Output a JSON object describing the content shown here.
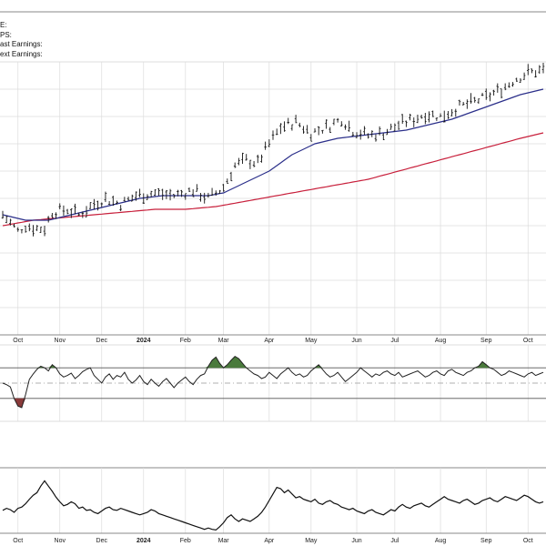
{
  "info_lines": [
    "E:",
    "PS:",
    "ast Earnings:",
    "ext Earnings:"
  ],
  "chart_data": [
    {
      "type": "ohlc",
      "title": "",
      "x_ticks": [
        "Oct",
        "Nov",
        "Dec",
        "2024",
        "Feb",
        "Mar",
        "Apr",
        "May",
        "Jun",
        "Jul",
        "Aug",
        "Sep",
        "Oct"
      ],
      "x_tick_index": [
        4,
        15,
        26,
        37,
        48,
        58,
        70,
        81,
        93,
        103,
        115,
        127,
        138
      ],
      "n_bars": 143,
      "price_anchors": [
        [
          0,
          0.44
        ],
        [
          4,
          0.38
        ],
        [
          6,
          0.4
        ],
        [
          9,
          0.39
        ],
        [
          11,
          0.39
        ],
        [
          13,
          0.45
        ],
        [
          17,
          0.46
        ],
        [
          20,
          0.44
        ],
        [
          24,
          0.48
        ],
        [
          27,
          0.5
        ],
        [
          31,
          0.48
        ],
        [
          35,
          0.51
        ],
        [
          40,
          0.52
        ],
        [
          45,
          0.51
        ],
        [
          50,
          0.53
        ],
        [
          54,
          0.5
        ],
        [
          58,
          0.54
        ],
        [
          61,
          0.62
        ],
        [
          64,
          0.64
        ],
        [
          67,
          0.63
        ],
        [
          70,
          0.7
        ],
        [
          73,
          0.76
        ],
        [
          77,
          0.78
        ],
        [
          81,
          0.74
        ],
        [
          85,
          0.76
        ],
        [
          89,
          0.79
        ],
        [
          92,
          0.75
        ],
        [
          96,
          0.73
        ],
        [
          100,
          0.74
        ],
        [
          104,
          0.77
        ],
        [
          108,
          0.79
        ],
        [
          111,
          0.81
        ],
        [
          115,
          0.8
        ],
        [
          119,
          0.83
        ],
        [
          123,
          0.85
        ],
        [
          127,
          0.87
        ],
        [
          131,
          0.9
        ],
        [
          135,
          0.94
        ],
        [
          138,
          0.96
        ],
        [
          142,
          0.97
        ]
      ],
      "ma_fast_anchors": [
        [
          0,
          0.44
        ],
        [
          6,
          0.42
        ],
        [
          12,
          0.42
        ],
        [
          18,
          0.44
        ],
        [
          24,
          0.46
        ],
        [
          30,
          0.48
        ],
        [
          36,
          0.5
        ],
        [
          42,
          0.51
        ],
        [
          48,
          0.51
        ],
        [
          54,
          0.51
        ],
        [
          58,
          0.52
        ],
        [
          64,
          0.56
        ],
        [
          70,
          0.6
        ],
        [
          76,
          0.66
        ],
        [
          82,
          0.7
        ],
        [
          88,
          0.72
        ],
        [
          94,
          0.73
        ],
        [
          100,
          0.74
        ],
        [
          106,
          0.75
        ],
        [
          112,
          0.77
        ],
        [
          118,
          0.79
        ],
        [
          124,
          0.82
        ],
        [
          130,
          0.85
        ],
        [
          136,
          0.88
        ],
        [
          142,
          0.9
        ]
      ],
      "ma_slow_anchors": [
        [
          0,
          0.4
        ],
        [
          8,
          0.42
        ],
        [
          16,
          0.43
        ],
        [
          24,
          0.44
        ],
        [
          32,
          0.45
        ],
        [
          40,
          0.46
        ],
        [
          48,
          0.46
        ],
        [
          56,
          0.47
        ],
        [
          64,
          0.49
        ],
        [
          72,
          0.51
        ],
        [
          80,
          0.53
        ],
        [
          88,
          0.55
        ],
        [
          96,
          0.57
        ],
        [
          104,
          0.6
        ],
        [
          112,
          0.63
        ],
        [
          120,
          0.66
        ],
        [
          128,
          0.69
        ],
        [
          136,
          0.72
        ],
        [
          142,
          0.74
        ]
      ],
      "price_color": "#111111",
      "ma_fast_color": "#2b2f8a",
      "ma_slow_color": "#c8203c"
    },
    {
      "type": "line",
      "title": "",
      "values": [
        0.5,
        0.48,
        0.45,
        0.3,
        0.2,
        0.18,
        0.35,
        0.55,
        0.62,
        0.68,
        0.72,
        0.7,
        0.66,
        0.74,
        0.7,
        0.62,
        0.58,
        0.6,
        0.63,
        0.56,
        0.6,
        0.65,
        0.68,
        0.7,
        0.6,
        0.55,
        0.5,
        0.58,
        0.62,
        0.55,
        0.6,
        0.58,
        0.64,
        0.55,
        0.5,
        0.54,
        0.6,
        0.52,
        0.48,
        0.55,
        0.5,
        0.46,
        0.52,
        0.56,
        0.5,
        0.44,
        0.5,
        0.54,
        0.58,
        0.52,
        0.48,
        0.55,
        0.6,
        0.62,
        0.72,
        0.8,
        0.84,
        0.76,
        0.7,
        0.74,
        0.8,
        0.85,
        0.82,
        0.76,
        0.7,
        0.66,
        0.62,
        0.6,
        0.56,
        0.58,
        0.64,
        0.6,
        0.56,
        0.62,
        0.66,
        0.7,
        0.64,
        0.6,
        0.62,
        0.58,
        0.6,
        0.66,
        0.7,
        0.74,
        0.68,
        0.62,
        0.58,
        0.6,
        0.64,
        0.58,
        0.52,
        0.56,
        0.6,
        0.64,
        0.7,
        0.66,
        0.62,
        0.58,
        0.62,
        0.6,
        0.64,
        0.66,
        0.62,
        0.6,
        0.64,
        0.58,
        0.6,
        0.62,
        0.64,
        0.66,
        0.62,
        0.58,
        0.6,
        0.64,
        0.66,
        0.62,
        0.6,
        0.66,
        0.68,
        0.64,
        0.62,
        0.6,
        0.64,
        0.66,
        0.7,
        0.72,
        0.78,
        0.74,
        0.7,
        0.68,
        0.64,
        0.6,
        0.62,
        0.66,
        0.64,
        0.62,
        0.6,
        0.58,
        0.62,
        0.64,
        0.6,
        0.62,
        0.64
      ],
      "upper_level": 0.7,
      "lower_level": 0.3,
      "mid_level": 0.5,
      "overbought_fill": "#4a7a3c",
      "oversold_fill": "#8a3a3a"
    },
    {
      "type": "line",
      "title": "",
      "values": [
        0.35,
        0.38,
        0.36,
        0.32,
        0.38,
        0.4,
        0.45,
        0.52,
        0.58,
        0.62,
        0.72,
        0.8,
        0.72,
        0.64,
        0.55,
        0.48,
        0.42,
        0.44,
        0.48,
        0.45,
        0.38,
        0.4,
        0.35,
        0.36,
        0.32,
        0.3,
        0.34,
        0.38,
        0.4,
        0.36,
        0.35,
        0.38,
        0.36,
        0.34,
        0.32,
        0.3,
        0.28,
        0.3,
        0.32,
        0.36,
        0.34,
        0.3,
        0.28,
        0.26,
        0.24,
        0.22,
        0.2,
        0.18,
        0.16,
        0.14,
        0.12,
        0.1,
        0.08,
        0.06,
        0.08,
        0.06,
        0.05,
        0.1,
        0.16,
        0.24,
        0.28,
        0.22,
        0.18,
        0.22,
        0.2,
        0.18,
        0.22,
        0.26,
        0.32,
        0.4,
        0.5,
        0.6,
        0.7,
        0.68,
        0.62,
        0.66,
        0.6,
        0.54,
        0.56,
        0.52,
        0.5,
        0.48,
        0.52,
        0.46,
        0.44,
        0.48,
        0.5,
        0.46,
        0.44,
        0.4,
        0.38,
        0.36,
        0.38,
        0.34,
        0.32,
        0.3,
        0.34,
        0.36,
        0.32,
        0.3,
        0.28,
        0.32,
        0.36,
        0.34,
        0.4,
        0.44,
        0.4,
        0.38,
        0.42,
        0.44,
        0.46,
        0.42,
        0.4,
        0.44,
        0.48,
        0.52,
        0.56,
        0.52,
        0.5,
        0.48,
        0.46,
        0.5,
        0.52,
        0.48,
        0.44,
        0.46,
        0.5,
        0.52,
        0.54,
        0.5,
        0.48,
        0.52,
        0.56,
        0.54,
        0.52,
        0.5,
        0.54,
        0.58,
        0.56,
        0.52,
        0.48,
        0.46,
        0.48
      ],
      "line_color": "#111111"
    }
  ],
  "colors": {
    "grid": "#dcdcdc",
    "axis_text": "#222222",
    "frame": "#888888",
    "ref_line": "#555555"
  }
}
